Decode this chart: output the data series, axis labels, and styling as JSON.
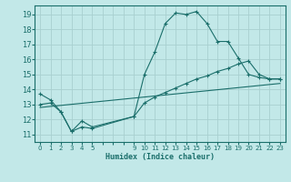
{
  "background_color": "#c2e8e8",
  "grid_color": "#a8d0d0",
  "line_color": "#1a6e6a",
  "xlabel": "Humidex (Indice chaleur)",
  "ylim": [
    10.5,
    19.6
  ],
  "xlim": [
    -0.5,
    23.5
  ],
  "yticks": [
    11,
    12,
    13,
    14,
    15,
    16,
    17,
    18,
    19
  ],
  "xtick_positions": [
    0,
    1,
    2,
    3,
    4,
    5,
    9,
    10,
    11,
    12,
    13,
    14,
    15,
    16,
    17,
    18,
    19,
    20,
    21,
    22,
    23
  ],
  "xtick_labels": [
    "0",
    "1",
    "2",
    "3",
    "4",
    "5",
    "9",
    "10",
    "11",
    "12",
    "13",
    "14",
    "15",
    "16",
    "17",
    "18",
    "19",
    "20",
    "21",
    "22",
    "23"
  ],
  "series1_x": [
    0,
    1,
    2,
    3,
    4,
    5,
    9,
    10,
    11,
    12,
    13,
    14,
    15,
    16,
    17,
    18,
    19,
    20,
    21,
    22,
    23
  ],
  "series1_y": [
    13.7,
    13.3,
    12.5,
    11.2,
    11.9,
    11.5,
    12.2,
    15.0,
    16.5,
    18.4,
    19.1,
    19.0,
    19.2,
    18.4,
    17.2,
    17.2,
    16.1,
    15.0,
    14.8,
    14.7,
    14.7
  ],
  "series2_x": [
    0,
    1,
    2,
    3,
    4,
    5,
    9,
    10,
    11,
    12,
    13,
    14,
    15,
    16,
    17,
    18,
    19,
    20,
    21,
    22,
    23
  ],
  "series2_y": [
    13.0,
    13.1,
    12.5,
    11.2,
    11.5,
    11.4,
    12.2,
    13.1,
    13.5,
    13.8,
    14.1,
    14.4,
    14.7,
    14.9,
    15.2,
    15.4,
    15.7,
    15.9,
    15.0,
    14.7,
    14.7
  ],
  "series3_x": [
    0,
    23
  ],
  "series3_y": [
    12.8,
    14.4
  ]
}
